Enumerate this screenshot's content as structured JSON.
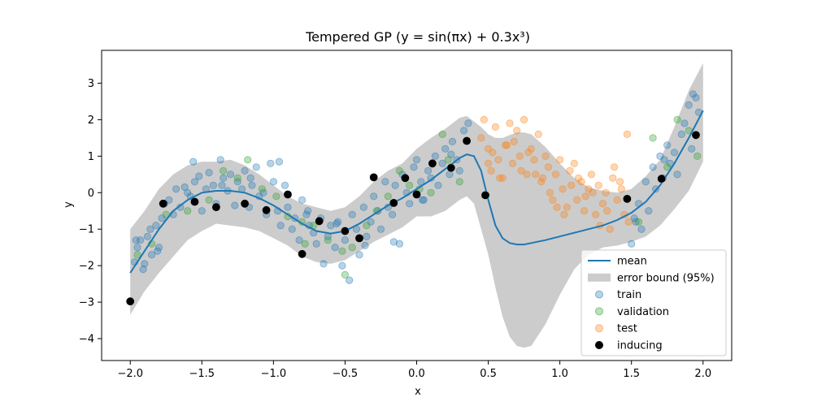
{
  "chart_data": {
    "type": "scatter",
    "title": "Tempered GP (y = sin(πx) + 0.3x³)",
    "xlabel": "x",
    "ylabel": "y",
    "xlim": [
      -2.2,
      2.2
    ],
    "ylim": [
      -4.6,
      3.9
    ],
    "xticks": [
      -2.0,
      -1.5,
      -1.0,
      -0.5,
      0.0,
      0.5,
      1.0,
      1.5,
      2.0
    ],
    "xtick_labels": [
      "−2.0",
      "−1.5",
      "−1.0",
      "−0.5",
      "0.0",
      "0.5",
      "1.0",
      "1.5",
      "2.0"
    ],
    "yticks": [
      -4,
      -3,
      -2,
      -1,
      0,
      1,
      2,
      3
    ],
    "ytick_labels": [
      "−4",
      "−3",
      "−2",
      "−1",
      "0",
      "1",
      "2",
      "3"
    ],
    "grid": false,
    "legend_position": "lower-right",
    "legend": [
      {
        "label": "mean",
        "kind": "line",
        "color": "#1f77b4"
      },
      {
        "label": "error bound (95%)",
        "kind": "patch",
        "color": "#cccccc"
      },
      {
        "label": "train",
        "kind": "marker",
        "color": "#1f77b4"
      },
      {
        "label": "validation",
        "kind": "marker",
        "color": "#2ca02c"
      },
      {
        "label": "test",
        "kind": "marker",
        "color": "#ff7f0e"
      },
      {
        "label": "inducing",
        "kind": "marker",
        "color": "#000000"
      }
    ],
    "mean": {
      "name": "mean",
      "color": "#1f77b4",
      "x": [
        -2.0,
        -1.9,
        -1.8,
        -1.7,
        -1.6,
        -1.5,
        -1.4,
        -1.3,
        -1.2,
        -1.1,
        -1.0,
        -0.9,
        -0.8,
        -0.7,
        -0.6,
        -0.5,
        -0.4,
        -0.3,
        -0.2,
        -0.1,
        0.0,
        0.1,
        0.2,
        0.3,
        0.35,
        0.4,
        0.45,
        0.5,
        0.55,
        0.6,
        0.65,
        0.7,
        0.75,
        0.8,
        0.9,
        1.0,
        1.1,
        1.2,
        1.3,
        1.4,
        1.5,
        1.6,
        1.7,
        1.8,
        1.9,
        2.0
      ],
      "y": [
        -2.2,
        -1.6,
        -1.0,
        -0.5,
        -0.2,
        0.0,
        0.05,
        0.05,
        0.0,
        -0.15,
        -0.35,
        -0.6,
        -0.85,
        -1.05,
        -1.12,
        -1.05,
        -0.85,
        -0.6,
        -0.35,
        -0.15,
        0.1,
        0.35,
        0.65,
        0.95,
        1.05,
        1.0,
        0.6,
        -0.2,
        -0.9,
        -1.25,
        -1.38,
        -1.42,
        -1.42,
        -1.38,
        -1.3,
        -1.2,
        -1.1,
        -1.0,
        -0.9,
        -0.75,
        -0.55,
        -0.25,
        0.2,
        0.8,
        1.5,
        2.25
      ]
    },
    "error_bound": {
      "name": "error bound (95%)",
      "color": "#cccccc",
      "x": [
        -2.0,
        -1.9,
        -1.8,
        -1.7,
        -1.6,
        -1.5,
        -1.4,
        -1.3,
        -1.2,
        -1.1,
        -1.0,
        -0.9,
        -0.8,
        -0.7,
        -0.6,
        -0.5,
        -0.4,
        -0.3,
        -0.2,
        -0.1,
        0.0,
        0.1,
        0.2,
        0.3,
        0.35,
        0.4,
        0.45,
        0.5,
        0.55,
        0.6,
        0.65,
        0.7,
        0.75,
        0.8,
        0.9,
        1.0,
        1.1,
        1.2,
        1.3,
        1.4,
        1.5,
        1.6,
        1.7,
        1.8,
        1.9,
        2.0
      ],
      "upper": [
        -1.0,
        -0.5,
        0.1,
        0.5,
        0.75,
        0.85,
        0.85,
        0.9,
        0.75,
        0.5,
        0.2,
        -0.1,
        -0.3,
        -0.4,
        -0.5,
        -0.4,
        -0.1,
        0.3,
        0.6,
        0.8,
        1.2,
        1.5,
        1.75,
        2.05,
        2.1,
        1.95,
        1.8,
        1.6,
        1.5,
        1.5,
        1.58,
        1.65,
        1.65,
        1.6,
        1.25,
        0.8,
        0.4,
        0.15,
        0.05,
        0.0,
        0.1,
        0.45,
        0.9,
        1.8,
        2.8,
        3.55
      ],
      "lower": [
        -3.35,
        -2.7,
        -2.2,
        -1.75,
        -1.3,
        -1.05,
        -0.85,
        -0.9,
        -0.95,
        -1.05,
        -1.25,
        -1.45,
        -1.75,
        -1.9,
        -1.95,
        -1.85,
        -1.6,
        -1.35,
        -1.15,
        -0.95,
        -0.65,
        -0.65,
        -0.5,
        -0.2,
        -0.1,
        -0.3,
        -1.0,
        -1.7,
        -2.6,
        -3.4,
        -3.95,
        -4.2,
        -4.25,
        -4.2,
        -3.6,
        -2.8,
        -2.1,
        -1.7,
        -1.5,
        -1.45,
        -1.35,
        -1.2,
        -0.9,
        -0.45,
        0.05,
        0.85
      ]
    },
    "series": [
      {
        "name": "train",
        "color": "#1f77b4",
        "x": [
          -1.97,
          -1.95,
          -1.93,
          -1.9,
          -1.88,
          -1.85,
          -1.82,
          -1.8,
          -1.78,
          -1.76,
          -1.73,
          -1.7,
          -1.68,
          -1.65,
          -1.62,
          -1.6,
          -1.58,
          -1.55,
          -1.52,
          -1.5,
          -1.47,
          -1.45,
          -1.42,
          -1.4,
          -1.37,
          -1.35,
          -1.32,
          -1.3,
          -1.27,
          -1.25,
          -1.22,
          -1.2,
          -1.17,
          -1.15,
          -1.12,
          -1.1,
          -1.07,
          -1.05,
          -1.02,
          -1.0,
          -0.97,
          -0.95,
          -0.92,
          -0.9,
          -0.87,
          -0.85,
          -0.82,
          -0.8,
          -0.77,
          -0.75,
          -0.72,
          -0.7,
          -0.67,
          -0.65,
          -0.62,
          -0.6,
          -0.57,
          -0.55,
          -0.52,
          -0.5,
          -0.47,
          -0.45,
          -0.42,
          -0.4,
          -0.37,
          -0.35,
          -0.32,
          -0.3,
          -0.27,
          -0.25,
          -0.22,
          -0.2,
          -0.17,
          -0.15,
          -0.12,
          -0.1,
          -0.07,
          -0.05,
          -0.02,
          0.0,
          0.03,
          0.05,
          0.08,
          0.1,
          0.13,
          0.15,
          0.18,
          0.2,
          0.23,
          0.25,
          0.28,
          0.3,
          0.33,
          0.36,
          1.5,
          1.52,
          1.55,
          1.57,
          1.6,
          1.62,
          1.65,
          1.67,
          1.7,
          1.72,
          1.75,
          1.77,
          1.8,
          1.82,
          1.85,
          1.87,
          1.9,
          1.92,
          1.95,
          1.97,
          -1.96,
          -1.91,
          -1.86,
          -1.81,
          -1.56,
          -1.36,
          -1.16,
          -0.96,
          -0.76,
          -0.56,
          -0.36,
          -0.16,
          0.04,
          0.24,
          1.53,
          1.73,
          1.93
        ],
        "y": [
          -1.9,
          -1.5,
          -1.3,
          -1.95,
          -1.2,
          -1.7,
          -0.9,
          -1.5,
          -0.7,
          -0.3,
          -0.2,
          -0.6,
          0.1,
          -0.4,
          0.15,
          0.0,
          -0.1,
          0.3,
          0.45,
          -0.5,
          0.1,
          0.55,
          0.2,
          -0.3,
          0.9,
          0.4,
          0.05,
          0.5,
          -0.35,
          0.3,
          0.1,
          0.6,
          -0.4,
          0.2,
          0.7,
          -0.1,
          0.0,
          -0.6,
          0.8,
          0.3,
          -0.5,
          -0.9,
          0.2,
          -0.4,
          -1.0,
          -0.7,
          -1.3,
          -0.2,
          -0.6,
          -0.9,
          -1.1,
          -1.4,
          -0.7,
          -1.95,
          -1.2,
          -0.9,
          -1.5,
          -0.8,
          -2.0,
          -1.3,
          -2.4,
          -0.6,
          -1.0,
          -1.7,
          -0.4,
          -1.2,
          -0.8,
          -0.1,
          -0.5,
          -1.0,
          0.3,
          -0.4,
          -0.6,
          0.2,
          -1.4,
          0.5,
          0.0,
          -0.3,
          0.7,
          0.9,
          0.3,
          -0.2,
          0.6,
          0.4,
          1.0,
          0.2,
          0.8,
          1.2,
          0.5,
          1.4,
          0.9,
          0.6,
          1.7,
          1.9,
          -1.4,
          -0.7,
          -0.3,
          -1.0,
          0.3,
          -0.5,
          0.7,
          0.1,
          1.0,
          0.4,
          1.3,
          0.8,
          1.1,
          0.5,
          1.6,
          1.9,
          2.4,
          1.2,
          2.6,
          2.2,
          -1.3,
          -2.1,
          -1.0,
          -1.6,
          0.85,
          0.2,
          0.4,
          0.85,
          -0.5,
          -0.85,
          -1.45,
          -1.35,
          -0.2,
          1.05,
          -0.8,
          0.9,
          2.7
        ]
      },
      {
        "name": "validation",
        "color": "#2ca02c",
        "x": [
          -1.95,
          -1.85,
          -1.75,
          -1.6,
          -1.45,
          -1.35,
          -1.25,
          -1.18,
          -1.08,
          -0.98,
          -0.9,
          -0.8,
          -0.72,
          -0.62,
          -0.52,
          -0.45,
          -0.35,
          -0.28,
          -0.2,
          -0.12,
          -0.05,
          0.02,
          0.1,
          0.18,
          0.22,
          0.3,
          1.55,
          1.65,
          1.75,
          1.82,
          1.9,
          1.96,
          -0.78,
          -0.5
        ],
        "y": [
          -1.7,
          -1.4,
          -0.6,
          -0.5,
          -0.2,
          0.6,
          0.4,
          0.9,
          0.1,
          -0.1,
          -0.65,
          -0.8,
          -0.9,
          -1.3,
          -1.6,
          -1.5,
          -0.9,
          -0.5,
          -0.1,
          0.6,
          0.2,
          0.1,
          0.0,
          1.6,
          0.9,
          0.3,
          -0.8,
          1.5,
          0.7,
          2.0,
          1.7,
          1.0,
          -1.4,
          -2.25
        ]
      },
      {
        "name": "test",
        "color": "#ff7f0e",
        "x": [
          0.45,
          0.47,
          0.5,
          0.52,
          0.55,
          0.57,
          0.6,
          0.62,
          0.65,
          0.67,
          0.7,
          0.72,
          0.75,
          0.77,
          0.8,
          0.82,
          0.85,
          0.87,
          0.9,
          0.92,
          0.95,
          0.97,
          1.0,
          1.02,
          1.05,
          1.07,
          1.1,
          1.12,
          1.15,
          1.17,
          1.2,
          1.22,
          1.25,
          1.27,
          1.3,
          1.32,
          1.35,
          1.37,
          1.4,
          1.42,
          1.45,
          1.47,
          0.5,
          0.58,
          0.68,
          0.78,
          0.88,
          0.98,
          1.08,
          1.18,
          1.28,
          1.38,
          1.48,
          0.53,
          0.63,
          0.73,
          0.83,
          0.93,
          1.03,
          1.13,
          1.23,
          1.33,
          1.43
        ],
        "y": [
          1.5,
          2.0,
          1.2,
          0.6,
          1.8,
          0.9,
          0.4,
          1.3,
          1.9,
          0.8,
          1.7,
          1.0,
          2.0,
          0.5,
          1.2,
          0.9,
          1.6,
          0.3,
          1.0,
          0.7,
          -0.2,
          0.5,
          0.9,
          0.1,
          -0.4,
          0.6,
          0.8,
          -0.2,
          0.3,
          -0.5,
          0.1,
          0.5,
          -0.6,
          0.2,
          -0.3,
          0.0,
          -1.0,
          0.4,
          -0.2,
          0.3,
          -0.6,
          1.6,
          0.8,
          0.4,
          1.4,
          1.1,
          0.4,
          -0.4,
          0.2,
          -0.1,
          -0.9,
          0.7,
          -0.8,
          1.1,
          1.3,
          0.6,
          0.5,
          0.0,
          -0.6,
          0.4,
          0.0,
          -0.5,
          0.1
        ]
      },
      {
        "name": "inducing",
        "color": "#000000",
        "x": [
          -2.0,
          -1.77,
          -1.55,
          -1.4,
          -1.2,
          -1.05,
          -0.9,
          -0.8,
          -0.68,
          -0.5,
          -0.4,
          -0.3,
          -0.16,
          -0.08,
          0.0,
          0.11,
          0.24,
          0.35,
          0.48,
          1.47,
          1.71,
          1.95
        ],
        "y": [
          -2.98,
          -0.3,
          -0.25,
          -0.4,
          -0.3,
          -0.48,
          -0.05,
          -1.68,
          -0.78,
          -1.05,
          -1.25,
          0.42,
          -0.28,
          0.4,
          -0.05,
          0.8,
          0.68,
          1.42,
          -0.07,
          -0.17,
          0.38,
          1.58
        ]
      }
    ]
  }
}
